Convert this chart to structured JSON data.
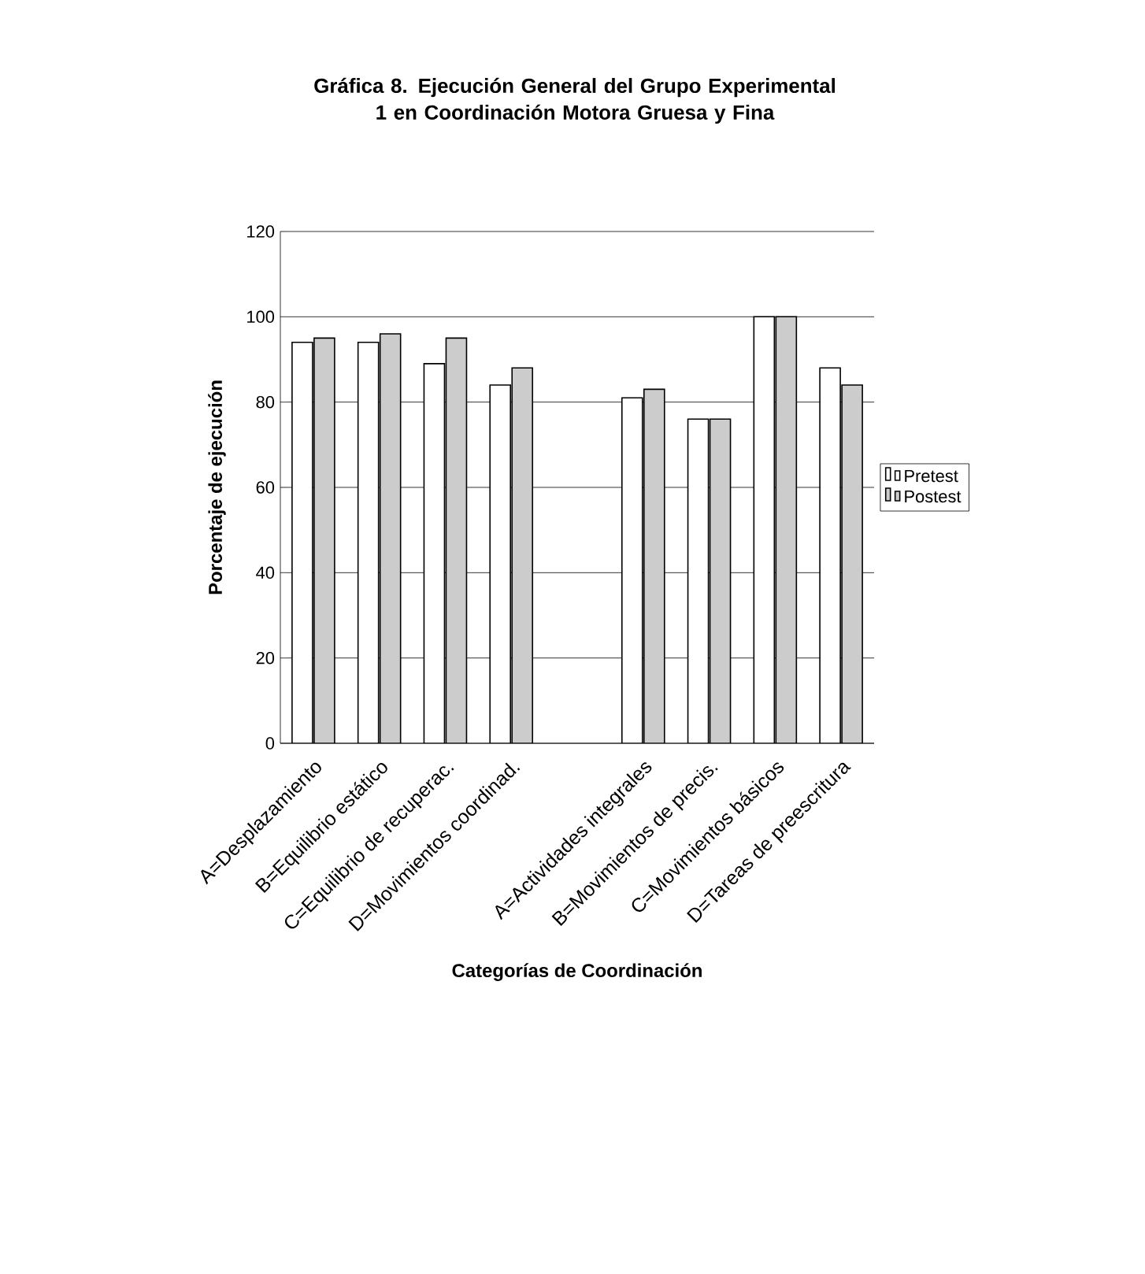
{
  "chart_data": {
    "type": "bar",
    "title": "Gráfica 8. Ejecución General del Grupo Experimental 1 en Coordinación Motora Gruesa y Fina",
    "xlabel": "Categorías de Coordinación",
    "ylabel": "Porcentaje de ejecución",
    "categories": [
      "A=Desplazamiento",
      "B=Equilibrio estático",
      "C=Equilibrio de recuperac.",
      "D=Movimientos coordinad.",
      null,
      "A=Actividades integrales",
      "B=Movimientos de precis.",
      "C=Movimientos básicos",
      "D=Tareas de preescritura"
    ],
    "series": [
      {
        "name": "Pretest",
        "color": "#ffffff",
        "values": [
          94,
          94,
          89,
          84,
          null,
          81,
          76,
          100,
          88
        ]
      },
      {
        "name": "Postest",
        "color": "#cccccc",
        "values": [
          95,
          96,
          95,
          88,
          null,
          83,
          76,
          100,
          84
        ]
      }
    ],
    "ylim": [
      0,
      120
    ],
    "yticks": [
      0,
      20,
      40,
      60,
      80,
      100,
      120
    ],
    "grid": "y",
    "legend": "right"
  }
}
